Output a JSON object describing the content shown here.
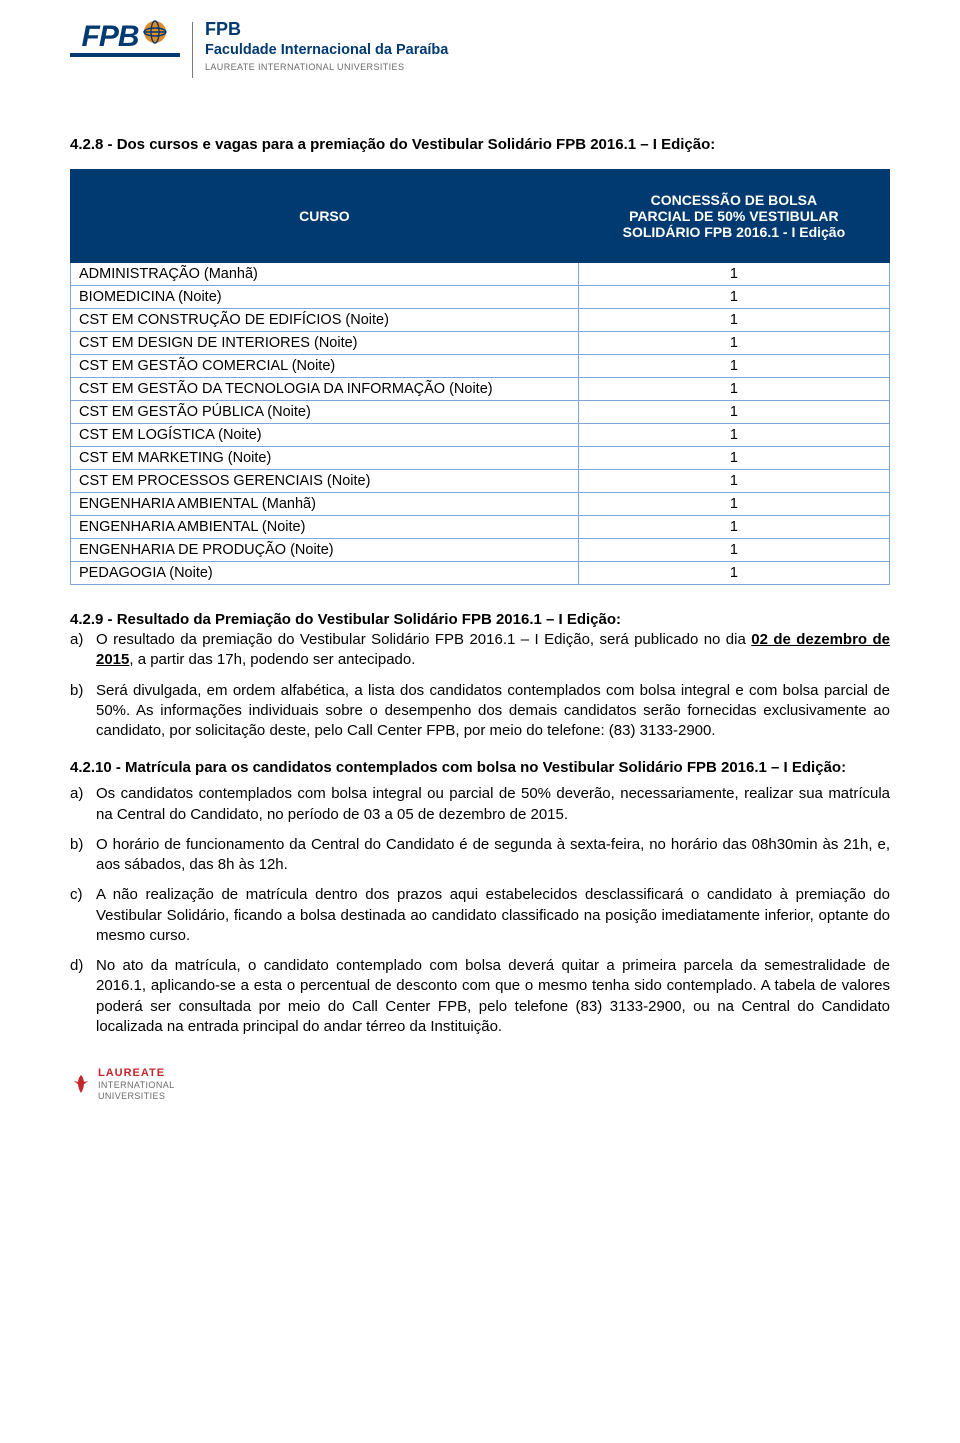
{
  "header": {
    "logo_short": "FPB",
    "logo_right_short": "FPB",
    "logo_right_full": "Faculdade Internacional da Paraíba",
    "logo_right_laureate": "LAUREATE INTERNATIONAL UNIVERSITIES"
  },
  "section_428": {
    "heading": "4.2.8 - Dos cursos e vagas para a premiação do Vestibular Solidário FPB 2016.1 – I Edição:"
  },
  "table": {
    "header_course": "CURSO",
    "header_bolsa_line1": "CONCESSÃO DE BOLSA",
    "header_bolsa_line2": "PARCIAL DE 50% VESTIBULAR",
    "header_bolsa_line3": "SOLIDÁRIO FPB 2016.1 - I Edição",
    "border_color": "#7ca7d8",
    "header_bg": "#003a70",
    "header_fg": "#ffffff",
    "rows": [
      {
        "course": "ADMINISTRAÇÃO (Manhã)",
        "value": "1"
      },
      {
        "course": "BIOMEDICINA (Noite)",
        "value": "1"
      },
      {
        "course": "CST EM CONSTRUÇÃO DE EDIFÍCIOS (Noite)",
        "value": "1"
      },
      {
        "course": "CST EM DESIGN DE INTERIORES (Noite)",
        "value": "1"
      },
      {
        "course": "CST EM GESTÃO COMERCIAL (Noite)",
        "value": "1"
      },
      {
        "course": "CST EM GESTÃO DA TECNOLOGIA DA INFORMAÇÃO (Noite)",
        "value": "1"
      },
      {
        "course": "CST EM GESTÃO PÚBLICA (Noite)",
        "value": "1"
      },
      {
        "course": "CST EM LOGÍSTICA (Noite)",
        "value": "1"
      },
      {
        "course": "CST EM MARKETING (Noite)",
        "value": "1"
      },
      {
        "course": "CST EM PROCESSOS GERENCIAIS (Noite)",
        "value": "1"
      },
      {
        "course": "ENGENHARIA AMBIENTAL (Manhã)",
        "value": "1"
      },
      {
        "course": "ENGENHARIA AMBIENTAL (Noite)",
        "value": "1"
      },
      {
        "course": "ENGENHARIA DE PRODUÇÃO (Noite)",
        "value": "1"
      },
      {
        "course": "PEDAGOGIA (Noite)",
        "value": "1"
      }
    ]
  },
  "section_429": {
    "heading": "4.2.9 - Resultado da Premiação do Vestibular Solidário FPB 2016.1 – I Edição:",
    "items": [
      {
        "marker": "a)",
        "pre": "O resultado da premiação do Vestibular Solidário FPB 2016.1 – I Edição, será publicado no dia ",
        "underline": "02 de dezembro de 2015",
        "post": ", a partir das 17h, podendo ser antecipado."
      },
      {
        "marker": "b)",
        "pre": "Será divulgada, em ordem alfabética, a lista dos candidatos contemplados com bolsa integral e com bolsa parcial de 50%. As informações individuais sobre o desempenho dos demais candidatos serão fornecidas exclusivamente ao candidato, por solicitação deste, pelo Call Center FPB, por meio do telefone: (83) 3133-2900.",
        "underline": "",
        "post": ""
      }
    ]
  },
  "section_4210": {
    "heading": "4.2.10 - Matrícula para os candidatos contemplados com bolsa no Vestibular Solidário FPB 2016.1 – I Edição:",
    "items": [
      {
        "marker": "a)",
        "text": "Os candidatos contemplados com bolsa integral ou parcial de 50% deverão, necessariamente, realizar sua matrícula na Central do Candidato, no período de 03 a 05 de dezembro de 2015."
      },
      {
        "marker": "b)",
        "text": "O horário de funcionamento da Central do Candidato é de segunda à sexta-feira, no horário das 08h30min às 21h, e, aos sábados, das 8h às 12h."
      },
      {
        "marker": "c)",
        "text": "A não realização de matrícula dentro dos prazos aqui estabelecidos desclassificará o candidato à premiação do Vestibular Solidário, ficando a bolsa destinada ao candidato classificado na posição imediatamente inferior, optante do mesmo curso."
      },
      {
        "marker": "d)",
        "text": "No ato da matrícula, o candidato contemplado com bolsa deverá quitar a primeira parcela da semestralidade de 2016.1, aplicando-se a esta o percentual de desconto com que o mesmo tenha sido contemplado. A tabela de valores poderá ser consultada por meio do Call Center FPB, pelo telefone (83) 3133-2900, ou na Central do Candidato localizada na entrada principal do andar térreo da Instituição."
      }
    ]
  },
  "footer": {
    "brand_strong": "LAUREATE",
    "brand_sub1": "INTERNATIONAL",
    "brand_sub2": "UNIVERSITIES"
  }
}
